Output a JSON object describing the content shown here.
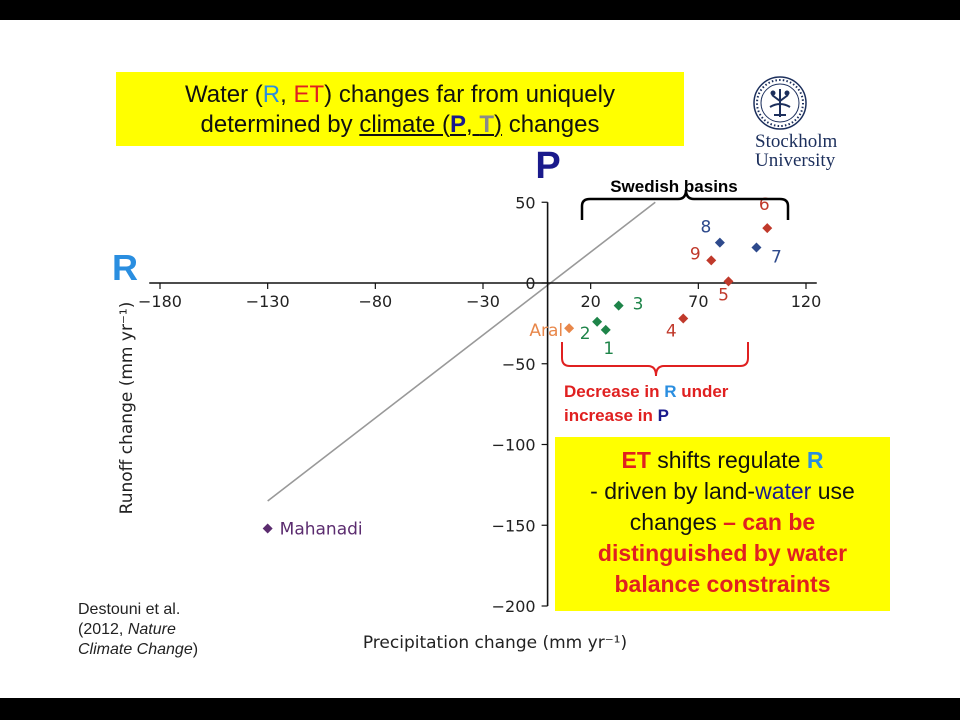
{
  "slide": {
    "title": {
      "p1": "Water (",
      "r": "R",
      "c1": ", ",
      "et": "ET",
      "p2": ") changes far from uniquely",
      "p3": "determined by ",
      "climate": "climate (",
      "p": "P",
      "c2": ", ",
      "t": "T",
      "close": ")",
      "p4": " changes"
    },
    "logo": {
      "icon": "stockholm-university-seal",
      "line1": "Stockholm",
      "line2": "University"
    },
    "big_p": "P",
    "big_r": "R",
    "swedish_label": "Swedish basins",
    "decrease_label": {
      "l1": "Decrease in ",
      "r": "R",
      "l2": " under",
      "l3": "increase in ",
      "p": "P"
    },
    "et_box": {
      "et": "ET",
      "s1": " shifts regulate ",
      "r": "R",
      "l2a": "- driven by land-",
      "l2b": "water",
      "l2c": " use",
      "l3a": "changes ",
      "l3b": "– can be",
      "l4": "distinguished by water",
      "l5": "balance constraints"
    },
    "reference": {
      "l1": "Destouni et al.",
      "l2a": "(2012, ",
      "l2b": "Nature",
      "l3a": "Climate Change",
      "l3b": ")"
    },
    "colors": {
      "highlight": "#ffff00",
      "dark_blue": "#1a1a8c",
      "light_blue": "#2a8ee0",
      "red": "#e02020"
    }
  },
  "chart_data": {
    "type": "scatter",
    "xlabel": "Precipitation change (mm yr⁻¹)",
    "ylabel": "Runoff change (mm yr⁻¹)",
    "xlim": [
      -185,
      125
    ],
    "ylim": [
      -200,
      50
    ],
    "x_ticks": [
      -180,
      -130,
      -80,
      -30,
      20,
      70,
      120
    ],
    "y_ticks": [
      50,
      0,
      -50,
      -100,
      -150,
      -200
    ],
    "x_tick_labels": [
      "−180",
      "−130",
      "−80",
      "−30",
      "20",
      "70",
      "120"
    ],
    "y_tick_labels": [
      "50",
      "0",
      "−50",
      "−100",
      "−150",
      "−200"
    ],
    "reference_line": {
      "x": [
        -130,
        50
      ],
      "y": [
        -135,
        50
      ]
    },
    "points": [
      {
        "label": "Mahanadi",
        "x": -130,
        "y": -152,
        "color": "#5b2c6f"
      },
      {
        "label": "Aral",
        "x": 10,
        "y": -28,
        "color": "#e8874a"
      },
      {
        "label": "1",
        "x": 27,
        "y": -29,
        "color": "#1e8449"
      },
      {
        "label": "2",
        "x": 23,
        "y": -24,
        "color": "#1e8449"
      },
      {
        "label": "3",
        "x": 33,
        "y": -14,
        "color": "#1e8449"
      },
      {
        "label": "4",
        "x": 63,
        "y": -22,
        "color": "#c0392b"
      },
      {
        "label": "5",
        "x": 84,
        "y": 1,
        "color": "#c0392b"
      },
      {
        "label": "6",
        "x": 102,
        "y": 34,
        "color": "#c0392b"
      },
      {
        "label": "7",
        "x": 97,
        "y": 22,
        "color": "#2e4a8c"
      },
      {
        "label": "8",
        "x": 80,
        "y": 25,
        "color": "#2e4a8c"
      },
      {
        "label": "9",
        "x": 76,
        "y": 14,
        "color": "#c0392b"
      }
    ]
  }
}
